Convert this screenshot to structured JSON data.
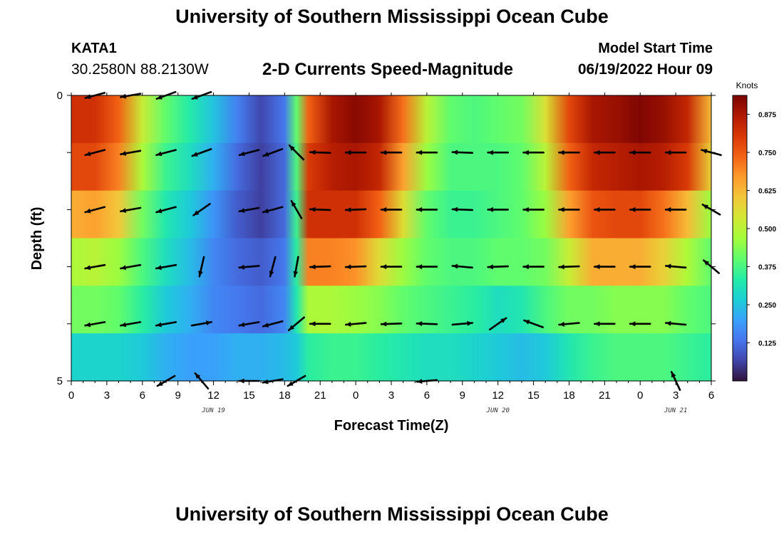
{
  "header": {
    "title": "University of Southern Mississippi Ocean Cube",
    "station": "KATA1",
    "coords": "30.2580N  88.2130W",
    "subtitle": "2-D Currents Speed-Magnitude",
    "start_label": "Model Start Time",
    "start_time": "06/19/2022 Hour 09",
    "footer_title": "University of Southern Mississippi Ocean Cube"
  },
  "chart_data": {
    "type": "heatmap",
    "title": "2-D Currents Speed-Magnitude",
    "xlabel": "Forecast Time(Z)",
    "ylabel": "Depth (ft)",
    "x_tick_labels": [
      "0",
      "3",
      "6",
      "9",
      "12",
      "15",
      "18",
      "21",
      "0",
      "3",
      "6",
      "9",
      "12",
      "15",
      "18",
      "21",
      "0",
      "3",
      "6"
    ],
    "x_tick_hours": [
      0,
      3,
      6,
      9,
      12,
      15,
      18,
      21,
      24,
      27,
      30,
      33,
      36,
      39,
      42,
      45,
      48,
      51,
      54
    ],
    "date_labels": [
      {
        "text": "JUN 19",
        "hour": 12
      },
      {
        "text": "JUN 20",
        "hour": 36
      },
      {
        "text": "JUN 21",
        "hour": 51
      }
    ],
    "xlim": [
      0,
      54
    ],
    "ylim": [
      0,
      5
    ],
    "y_tick_labels": [
      "0",
      "5"
    ],
    "y_ticks": [
      0,
      1,
      2,
      3,
      4,
      5
    ],
    "colorbar": {
      "unit": "Knots",
      "range": [
        0.0,
        0.937
      ],
      "tick_labels": [
        "0.875",
        "0.750",
        "0.625",
        "0.500",
        "0.375",
        "0.250",
        "0.125"
      ],
      "tick_values": [
        0.875,
        0.75,
        0.625,
        0.5,
        0.375,
        0.25,
        0.125
      ],
      "colormap": [
        "#30123b",
        "#4145ab",
        "#4675ed",
        "#39a2fc",
        "#1bcfd4",
        "#24eca6",
        "#61fc6c",
        "#a4fc3b",
        "#d1e834",
        "#f3c63a",
        "#fe9b2d",
        "#f36315",
        "#d93806",
        "#b11901",
        "#7a0403"
      ]
    },
    "speed_profile": {
      "hours": [
        0,
        2,
        4,
        6,
        8,
        10,
        12,
        14,
        16,
        18,
        19,
        20,
        22,
        24,
        26,
        28,
        30,
        32,
        34,
        36,
        38,
        40,
        42,
        44,
        46,
        48,
        50,
        52,
        54
      ],
      "rows": [
        [
          0.82,
          0.82,
          0.74,
          0.52,
          0.4,
          0.33,
          0.25,
          0.15,
          0.07,
          0.14,
          0.4,
          0.74,
          0.88,
          0.92,
          0.88,
          0.72,
          0.5,
          0.4,
          0.38,
          0.4,
          0.42,
          0.55,
          0.78,
          0.88,
          0.9,
          0.93,
          0.9,
          0.84,
          0.62
        ],
        [
          0.78,
          0.78,
          0.7,
          0.48,
          0.36,
          0.3,
          0.22,
          0.12,
          0.06,
          0.12,
          0.38,
          0.8,
          0.86,
          0.88,
          0.84,
          0.66,
          0.46,
          0.38,
          0.38,
          0.38,
          0.4,
          0.5,
          0.74,
          0.84,
          0.86,
          0.88,
          0.86,
          0.8,
          0.58
        ],
        [
          0.64,
          0.66,
          0.6,
          0.42,
          0.32,
          0.26,
          0.18,
          0.1,
          0.06,
          0.12,
          0.36,
          0.82,
          0.82,
          0.82,
          0.74,
          0.56,
          0.4,
          0.36,
          0.36,
          0.38,
          0.4,
          0.46,
          0.66,
          0.76,
          0.78,
          0.78,
          0.72,
          0.62,
          0.46
        ],
        [
          0.48,
          0.5,
          0.46,
          0.38,
          0.3,
          0.24,
          0.16,
          0.12,
          0.1,
          0.14,
          0.34,
          0.7,
          0.7,
          0.68,
          0.56,
          0.46,
          0.4,
          0.38,
          0.38,
          0.4,
          0.4,
          0.42,
          0.52,
          0.64,
          0.64,
          0.64,
          0.58,
          0.48,
          0.4
        ],
        [
          0.42,
          0.42,
          0.4,
          0.34,
          0.26,
          0.22,
          0.16,
          0.14,
          0.12,
          0.16,
          0.32,
          0.48,
          0.48,
          0.46,
          0.44,
          0.4,
          0.38,
          0.36,
          0.34,
          0.3,
          0.32,
          0.38,
          0.42,
          0.42,
          0.44,
          0.44,
          0.44,
          0.4,
          0.38
        ],
        [
          0.28,
          0.28,
          0.28,
          0.26,
          0.22,
          0.2,
          0.2,
          0.22,
          0.22,
          0.24,
          0.26,
          0.34,
          0.36,
          0.36,
          0.34,
          0.32,
          0.3,
          0.3,
          0.28,
          0.26,
          0.24,
          0.26,
          0.32,
          0.36,
          0.38,
          0.38,
          0.38,
          0.36,
          0.34
        ]
      ]
    },
    "vectors": {
      "depth_rows": [
        0,
        1,
        2,
        3,
        4,
        5
      ],
      "hours": [
        2,
        5,
        8,
        11,
        15,
        17,
        19,
        21,
        24,
        27,
        30,
        33,
        36,
        39,
        42,
        45,
        48,
        51,
        54
      ],
      "angles_deg": [
        [
          195,
          190,
          200,
          200,
          null,
          null,
          null,
          null,
          null,
          null,
          null,
          null,
          null,
          null,
          null,
          null,
          null,
          null,
          null
        ],
        [
          195,
          190,
          195,
          200,
          195,
          200,
          135,
          178,
          180,
          180,
          180,
          178,
          180,
          180,
          180,
          180,
          180,
          180,
          165
        ],
        [
          195,
          190,
          195,
          215,
          190,
          195,
          120,
          178,
          182,
          180,
          180,
          178,
          180,
          180,
          180,
          180,
          180,
          180,
          150
        ],
        [
          190,
          190,
          190,
          257,
          185,
          255,
          260,
          182,
          182,
          180,
          180,
          175,
          182,
          180,
          182,
          180,
          180,
          175,
          140
        ],
        [
          190,
          190,
          190,
          10,
          190,
          195,
          220,
          180,
          185,
          182,
          178,
          5,
          35,
          160,
          185,
          180,
          180,
          175,
          null
        ],
        [
          null,
          null,
          210,
          130,
          180,
          190,
          210,
          null,
          null,
          null,
          185,
          null,
          null,
          null,
          null,
          null,
          null,
          115,
          null
        ]
      ]
    }
  }
}
